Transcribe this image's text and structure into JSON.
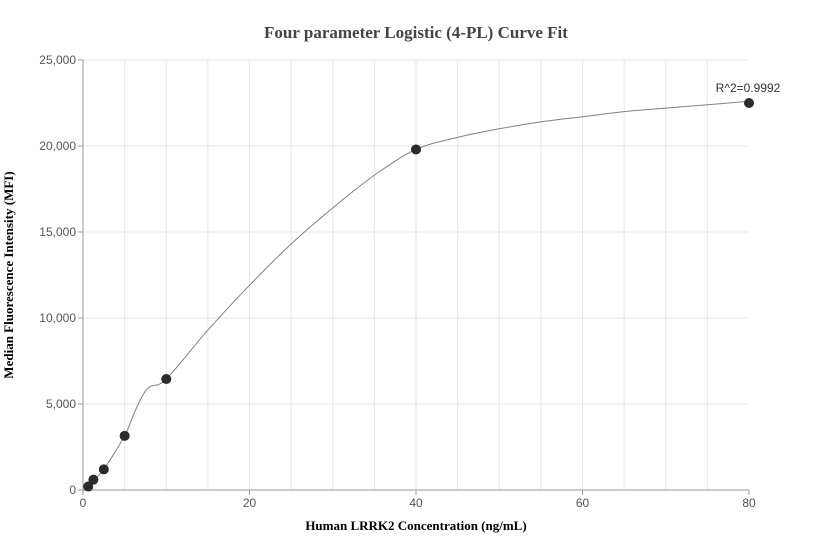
{
  "chart_data": {
    "type": "scatter",
    "title": "Four parameter Logistic (4-PL) Curve Fit",
    "xlabel": "Human LRRK2 Concentration (ng/mL)",
    "ylabel": "Median Fluorescence Intensity (MFI)",
    "xlim": [
      0,
      80
    ],
    "ylim": [
      0,
      25000
    ],
    "x_ticks": [
      0,
      20,
      40,
      60,
      80
    ],
    "x_tick_labels": [
      "0",
      "20",
      "40",
      "60",
      "80"
    ],
    "y_ticks": [
      0,
      5000,
      10000,
      15000,
      20000,
      25000
    ],
    "y_tick_labels": [
      "0",
      "5,000",
      "10,000",
      "15,000",
      "20,000",
      "25,000"
    ],
    "grid": true,
    "points": [
      {
        "x": 0.625,
        "y": 200
      },
      {
        "x": 1.25,
        "y": 600
      },
      {
        "x": 2.5,
        "y": 1200
      },
      {
        "x": 5,
        "y": 3150
      },
      {
        "x": 10,
        "y": 6450
      },
      {
        "x": 40,
        "y": 19800
      },
      {
        "x": 80,
        "y": 22500
      }
    ],
    "fit_curve": [
      [
        0.625,
        200
      ],
      [
        1.25,
        600
      ],
      [
        2.5,
        1200
      ],
      [
        5,
        3150
      ],
      [
        6,
        4300
      ],
      [
        7,
        5350
      ],
      [
        8,
        6000
      ],
      [
        10,
        6450
      ],
      [
        15,
        9300
      ],
      [
        20,
        11900
      ],
      [
        25,
        14300
      ],
      [
        30,
        16400
      ],
      [
        35,
        18300
      ],
      [
        40,
        19800
      ],
      [
        45,
        20500
      ],
      [
        50,
        21000
      ],
      [
        55,
        21400
      ],
      [
        60,
        21700
      ],
      [
        65,
        22000
      ],
      [
        70,
        22200
      ],
      [
        75,
        22400
      ],
      [
        80,
        22600
      ]
    ],
    "annotation": "R^2=0.9992",
    "colors": {
      "point": "#2b2b2b",
      "curve": "#808080",
      "grid": "#e6e6ee",
      "axis": "#9a9a9a"
    }
  }
}
